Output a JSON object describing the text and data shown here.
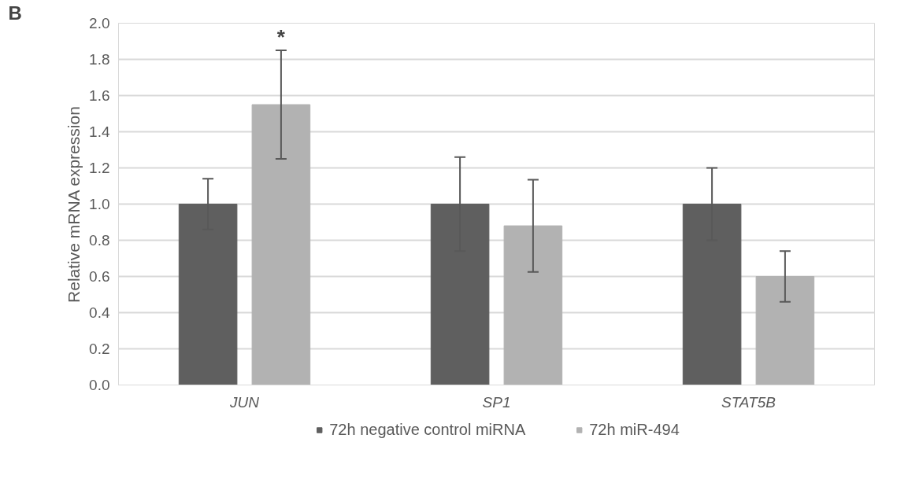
{
  "chart_data": {
    "type": "bar",
    "ylabel": "Relative mRNA expression",
    "categories": [
      "JUN",
      "SP1",
      "STAT5B"
    ],
    "series": [
      {
        "name": "72h negative control miRNA",
        "color": "#5f5f5f",
        "values": [
          1.0,
          1.0,
          1.0
        ],
        "errors": [
          0.14,
          0.26,
          0.2
        ]
      },
      {
        "name": "72h miR-494",
        "color": "#b2b2b2",
        "values": [
          1.55,
          0.88,
          0.6
        ],
        "errors": [
          0.3,
          0.255,
          0.14
        ]
      }
    ],
    "ylim": [
      0,
      2.0
    ],
    "yticks": [
      {
        "value": 0,
        "label": "0.0"
      },
      {
        "value": 0.2,
        "label": "0.2"
      },
      {
        "value": 0.4,
        "label": "0.4"
      },
      {
        "value": 0.6,
        "label": "0.6"
      },
      {
        "value": 0.8,
        "label": "0.8"
      },
      {
        "value": 1.0,
        "label": "1.0"
      },
      {
        "value": 1.2,
        "label": "1.2"
      },
      {
        "value": 1.4,
        "label": "1.4"
      },
      {
        "value": 1.6,
        "label": "1.6"
      },
      {
        "value": 1.8,
        "label": "1.8"
      },
      {
        "value": 2.0,
        "label": "2.0"
      }
    ],
    "grid": "y",
    "legend": "bottom",
    "annotations": [
      "B",
      "*"
    ]
  }
}
